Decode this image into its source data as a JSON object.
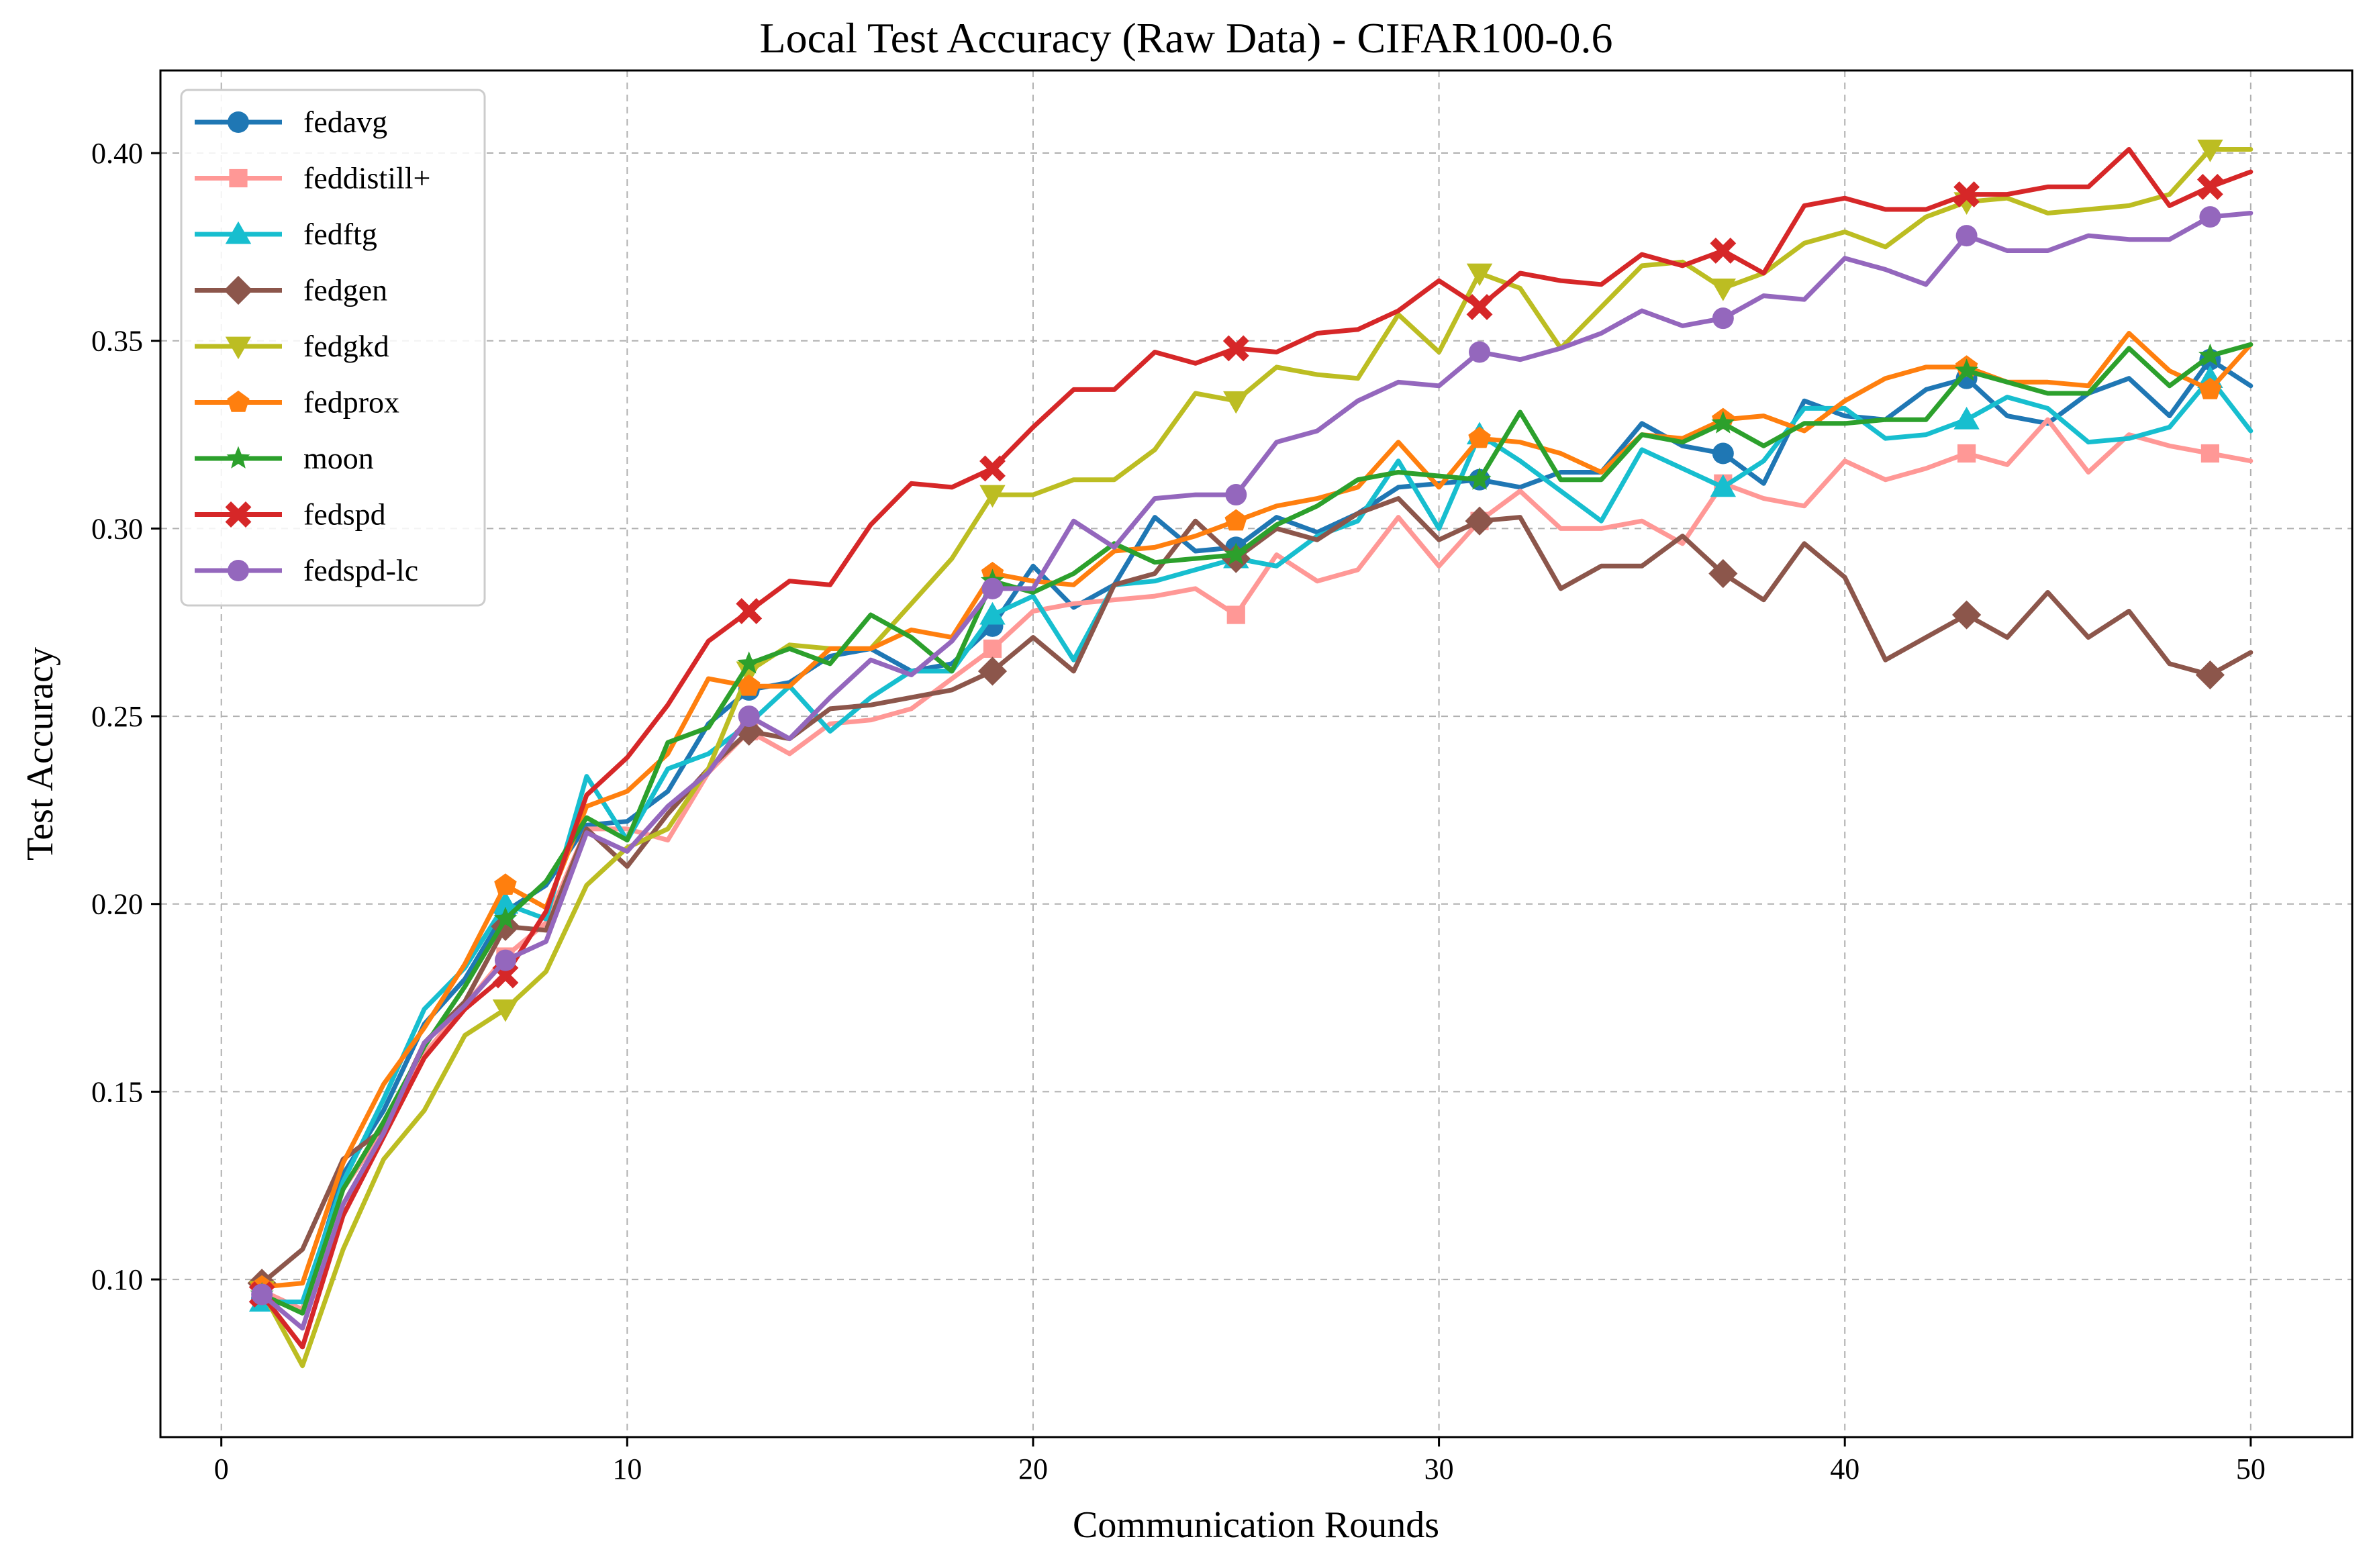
{
  "chart_data": {
    "type": "line",
    "title": "Local Test Accuracy (Raw Data) - CIFAR100-0.6",
    "xlabel": "Communication Rounds",
    "ylabel": "Test Accuracy",
    "xlim": [
      -1.5,
      52.5
    ],
    "ylim": [
      0.058,
      0.422
    ],
    "xticks": [
      0,
      10,
      20,
      30,
      40,
      50
    ],
    "xtick_labels": [
      "0",
      "10",
      "20",
      "30",
      "40",
      "50"
    ],
    "yticks": [
      0.1,
      0.15,
      0.2,
      0.25,
      0.3,
      0.35,
      0.4
    ],
    "ytick_labels": [
      "0.10",
      "0.15",
      "0.20",
      "0.25",
      "0.30",
      "0.35",
      "0.40"
    ],
    "grid": true,
    "legend_position": "top-left",
    "x": [
      1,
      2,
      3,
      4,
      5,
      6,
      7,
      8,
      9,
      10,
      11,
      12,
      13,
      14,
      15,
      16,
      17,
      18,
      19,
      20,
      21,
      22,
      23,
      24,
      25,
      26,
      27,
      28,
      29,
      30,
      31,
      32,
      33,
      34,
      35,
      36,
      37,
      38,
      39,
      40,
      41,
      42,
      43,
      44,
      45,
      46,
      47,
      48,
      49,
      50
    ],
    "series": [
      {
        "name": "fedavg",
        "color": "#1f77b4",
        "marker": "circle",
        "values": [
          0.095,
          0.092,
          0.128,
          0.145,
          0.168,
          0.18,
          0.198,
          0.205,
          0.221,
          0.222,
          0.23,
          0.248,
          0.257,
          0.259,
          0.266,
          0.268,
          0.262,
          0.264,
          0.274,
          0.29,
          0.279,
          0.285,
          0.303,
          0.294,
          0.295,
          0.303,
          0.299,
          0.304,
          0.311,
          0.312,
          0.313,
          0.311,
          0.315,
          0.315,
          0.328,
          0.322,
          0.32,
          0.312,
          0.334,
          0.33,
          0.329,
          0.337,
          0.34,
          0.33,
          0.328,
          0.336,
          0.34,
          0.33,
          0.345,
          0.338
        ]
      },
      {
        "name": "feddistill+",
        "color": "#ff9896",
        "marker": "square",
        "values": [
          0.097,
          0.092,
          0.124,
          0.14,
          0.16,
          0.173,
          0.186,
          0.195,
          0.22,
          0.22,
          0.217,
          0.235,
          0.246,
          0.24,
          0.248,
          0.249,
          0.252,
          0.26,
          0.268,
          0.278,
          0.28,
          0.281,
          0.282,
          0.284,
          0.277,
          0.293,
          0.286,
          0.289,
          0.303,
          0.29,
          0.302,
          0.31,
          0.3,
          0.3,
          0.302,
          0.296,
          0.312,
          0.308,
          0.306,
          0.318,
          0.313,
          0.316,
          0.32,
          0.317,
          0.329,
          0.315,
          0.325,
          0.322,
          0.32,
          0.318
        ]
      },
      {
        "name": "fedftg",
        "color": "#17becf",
        "marker": "triangle-up",
        "values": [
          0.094,
          0.094,
          0.126,
          0.148,
          0.172,
          0.183,
          0.2,
          0.196,
          0.234,
          0.217,
          0.236,
          0.24,
          0.248,
          0.258,
          0.246,
          0.255,
          0.262,
          0.262,
          0.277,
          0.282,
          0.265,
          0.285,
          0.286,
          0.289,
          0.292,
          0.29,
          0.298,
          0.302,
          0.318,
          0.3,
          0.325,
          0.318,
          0.31,
          0.302,
          0.321,
          0.316,
          0.311,
          0.318,
          0.332,
          0.332,
          0.324,
          0.325,
          0.329,
          0.335,
          0.332,
          0.323,
          0.324,
          0.327,
          0.34,
          0.326
        ]
      },
      {
        "name": "fedgen",
        "color": "#8c564b",
        "marker": "diamond",
        "values": [
          0.099,
          0.108,
          0.132,
          0.14,
          0.163,
          0.174,
          0.194,
          0.193,
          0.22,
          0.21,
          0.224,
          0.236,
          0.246,
          0.244,
          0.252,
          0.253,
          0.255,
          0.257,
          0.262,
          0.271,
          0.262,
          0.285,
          0.288,
          0.302,
          0.292,
          0.3,
          0.297,
          0.304,
          0.308,
          0.297,
          0.302,
          0.303,
          0.284,
          0.29,
          0.29,
          0.298,
          0.288,
          0.281,
          0.296,
          0.287,
          0.265,
          0.271,
          0.277,
          0.271,
          0.283,
          0.271,
          0.278,
          0.264,
          0.261,
          0.267
        ]
      },
      {
        "name": "fedgkd",
        "color": "#bcbd22",
        "marker": "triangle-down",
        "values": [
          0.097,
          0.077,
          0.108,
          0.132,
          0.145,
          0.165,
          0.172,
          0.182,
          0.205,
          0.215,
          0.22,
          0.236,
          0.262,
          0.269,
          0.268,
          0.268,
          0.28,
          0.292,
          0.309,
          0.309,
          0.313,
          0.313,
          0.321,
          0.336,
          0.334,
          0.343,
          0.341,
          0.34,
          0.357,
          0.347,
          0.368,
          0.364,
          0.348,
          0.359,
          0.37,
          0.371,
          0.364,
          0.368,
          0.376,
          0.379,
          0.375,
          0.383,
          0.387,
          0.388,
          0.384,
          0.385,
          0.386,
          0.389,
          0.401,
          0.401
        ]
      },
      {
        "name": "fedprox",
        "color": "#ff7f0e",
        "marker": "pentagon",
        "values": [
          0.098,
          0.099,
          0.131,
          0.152,
          0.167,
          0.184,
          0.205,
          0.199,
          0.226,
          0.23,
          0.24,
          0.26,
          0.258,
          0.258,
          0.268,
          0.268,
          0.273,
          0.271,
          0.288,
          0.286,
          0.285,
          0.294,
          0.295,
          0.298,
          0.302,
          0.306,
          0.308,
          0.311,
          0.323,
          0.311,
          0.324,
          0.323,
          0.32,
          0.315,
          0.325,
          0.324,
          0.329,
          0.33,
          0.326,
          0.334,
          0.34,
          0.343,
          0.343,
          0.339,
          0.339,
          0.338,
          0.352,
          0.342,
          0.337,
          0.349
        ]
      },
      {
        "name": "moon",
        "color": "#2ca02c",
        "marker": "star",
        "values": [
          0.096,
          0.091,
          0.124,
          0.142,
          0.162,
          0.178,
          0.196,
          0.206,
          0.223,
          0.217,
          0.243,
          0.247,
          0.264,
          0.268,
          0.264,
          0.277,
          0.271,
          0.262,
          0.286,
          0.283,
          0.288,
          0.296,
          0.291,
          0.292,
          0.293,
          0.301,
          0.306,
          0.313,
          0.315,
          0.314,
          0.313,
          0.331,
          0.313,
          0.313,
          0.325,
          0.323,
          0.328,
          0.322,
          0.328,
          0.328,
          0.329,
          0.329,
          0.342,
          0.339,
          0.336,
          0.336,
          0.348,
          0.338,
          0.346,
          0.349
        ]
      },
      {
        "name": "fedspd",
        "color": "#d62728",
        "marker": "x",
        "values": [
          0.096,
          0.082,
          0.117,
          0.138,
          0.159,
          0.172,
          0.181,
          0.198,
          0.229,
          0.239,
          0.253,
          0.27,
          0.278,
          0.286,
          0.285,
          0.301,
          0.312,
          0.311,
          0.316,
          0.327,
          0.337,
          0.337,
          0.347,
          0.344,
          0.348,
          0.347,
          0.352,
          0.353,
          0.358,
          0.366,
          0.359,
          0.368,
          0.366,
          0.365,
          0.373,
          0.37,
          0.374,
          0.368,
          0.386,
          0.388,
          0.385,
          0.385,
          0.389,
          0.389,
          0.391,
          0.391,
          0.401,
          0.386,
          0.391,
          0.395
        ]
      },
      {
        "name": "fedspd-lc",
        "color": "#9467bd",
        "marker": "circle",
        "values": [
          0.096,
          0.087,
          0.12,
          0.139,
          0.163,
          0.173,
          0.185,
          0.19,
          0.219,
          0.214,
          0.226,
          0.235,
          0.25,
          0.244,
          0.255,
          0.265,
          0.261,
          0.27,
          0.284,
          0.284,
          0.302,
          0.295,
          0.308,
          0.309,
          0.309,
          0.323,
          0.326,
          0.334,
          0.339,
          0.338,
          0.347,
          0.345,
          0.348,
          0.352,
          0.358,
          0.354,
          0.356,
          0.362,
          0.361,
          0.372,
          0.369,
          0.365,
          0.378,
          0.374,
          0.374,
          0.378,
          0.377,
          0.377,
          0.383,
          0.384
        ]
      }
    ],
    "marker_x": [
      1,
      7,
      13,
      19,
      25,
      31,
      37,
      43,
      49
    ]
  }
}
